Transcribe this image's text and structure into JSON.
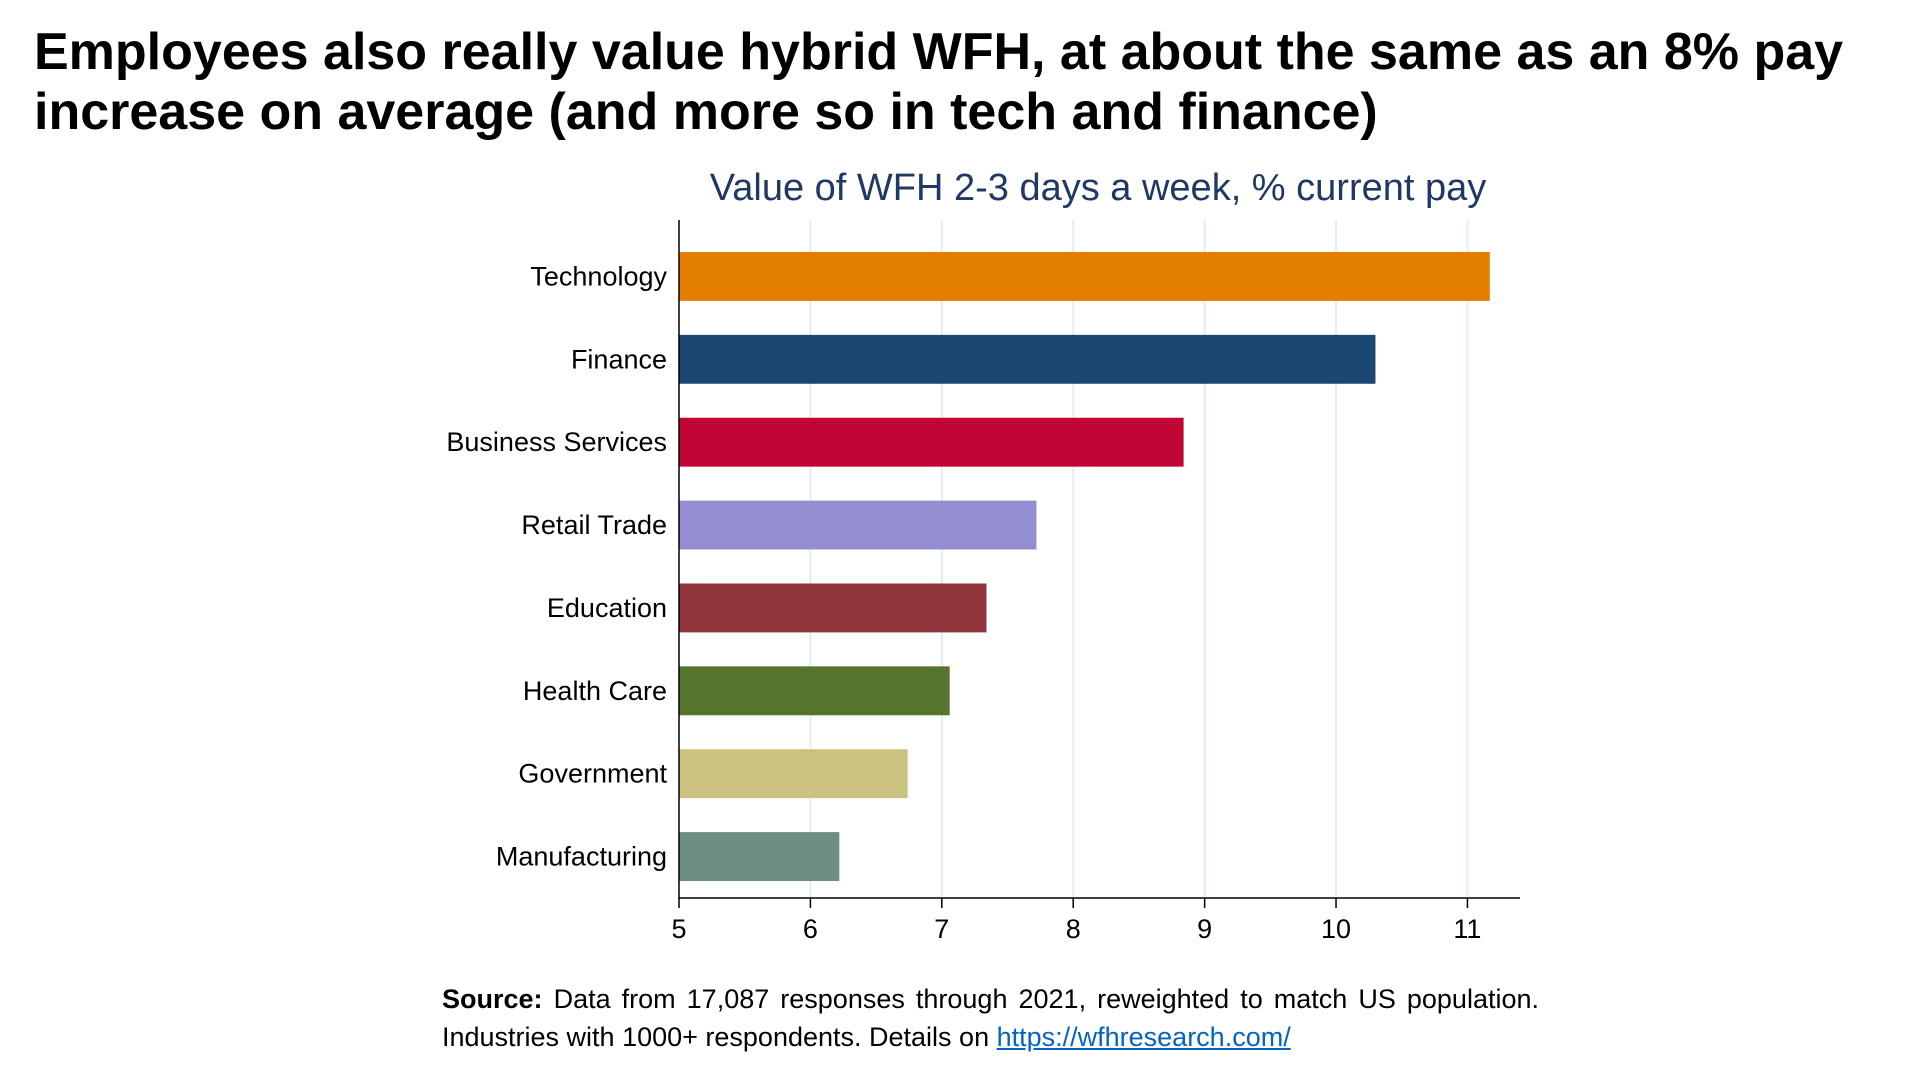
{
  "slide": {
    "headline": "Employees also really value hybrid WFH, at about the same as an 8% pay increase on average (and more so in tech and finance)",
    "source_label": "Source:",
    "source_text": " Data from 17,087 responses through 2021, reweighted to match US population. Industries with 1000+ respondents. Details on ",
    "source_link": "https://wfhresearch.com/"
  },
  "chart_data": {
    "type": "bar",
    "orientation": "horizontal",
    "title": "Value of WFH 2-3 days a week, % current pay",
    "xlabel": "",
    "ylabel": "",
    "categories": [
      "Technology",
      "Finance",
      "Business Services",
      "Retail Trade",
      "Education",
      "Health Care",
      "Government",
      "Manufacturing"
    ],
    "values": [
      11.17,
      10.3,
      8.84,
      7.72,
      7.34,
      7.06,
      6.74,
      6.22
    ],
    "colors": [
      "#e37e00",
      "#1a476f",
      "#c10534",
      "#938dd2",
      "#90353b",
      "#55752f",
      "#cac27e",
      "#6e8e84"
    ],
    "xlim": [
      5,
      11.4
    ],
    "xticks": [
      5,
      6,
      7,
      8,
      9,
      10,
      11
    ],
    "grid": "vertical",
    "grid_color": "#e2eeee",
    "title_color": "#1f3864",
    "legend": "none"
  }
}
